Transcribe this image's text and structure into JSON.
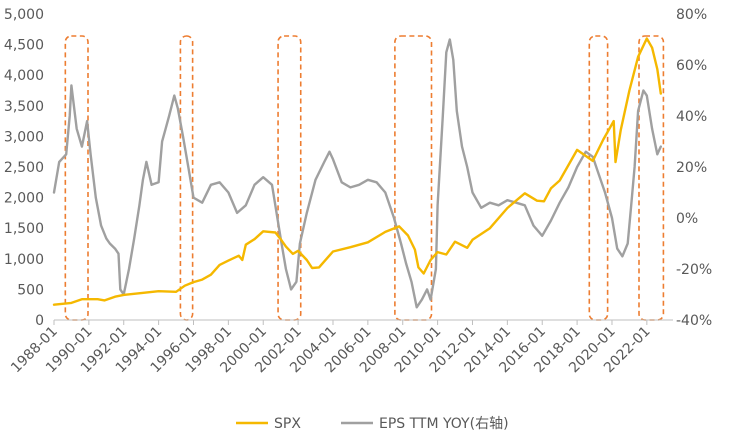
{
  "chart_data": {
    "type": "line",
    "title": "",
    "xlabel": "",
    "ylabel": "",
    "x_tick_labels": [
      "1988-01",
      "1990-01",
      "1992-01",
      "1994-01",
      "1996-01",
      "1998-01",
      "2000-01",
      "2002-01",
      "2004-01",
      "2006-01",
      "2008-01",
      "2010-01",
      "2012-01",
      "2014-01",
      "2016-01",
      "2018-01",
      "2020-01",
      "2022-01"
    ],
    "x_range": [
      1988.0,
      2023.5
    ],
    "left_axis": {
      "ylim": [
        0,
        5000
      ],
      "tick_labels": [
        "0",
        "500",
        "1,000",
        "1,500",
        "2,000",
        "2,500",
        "3,000",
        "3,500",
        "4,000",
        "4,500",
        "5,000"
      ]
    },
    "right_axis": {
      "ylim": [
        -40,
        80
      ],
      "tick_labels": [
        "-40%",
        "-20%",
        "0%",
        "20%",
        "40%",
        "60%",
        "80%"
      ]
    },
    "legend_position": "bottom",
    "series": [
      {
        "name": "SPX",
        "axis": "left",
        "color": "#F5B800",
        "points": [
          [
            1988.0,
            250
          ],
          [
            1989.0,
            280
          ],
          [
            1989.6,
            340
          ],
          [
            1990.5,
            340
          ],
          [
            1990.9,
            320
          ],
          [
            1991.5,
            380
          ],
          [
            1992.0,
            410
          ],
          [
            1993.0,
            440
          ],
          [
            1994.0,
            470
          ],
          [
            1995.0,
            460
          ],
          [
            1995.5,
            560
          ],
          [
            1996.0,
            620
          ],
          [
            1996.5,
            660
          ],
          [
            1997.0,
            740
          ],
          [
            1997.5,
            900
          ],
          [
            1998.0,
            970
          ],
          [
            1998.6,
            1050
          ],
          [
            1998.8,
            980
          ],
          [
            1999.0,
            1230
          ],
          [
            1999.5,
            1320
          ],
          [
            2000.0,
            1450
          ],
          [
            2000.7,
            1430
          ],
          [
            2001.0,
            1320
          ],
          [
            2001.3,
            1200
          ],
          [
            2001.7,
            1080
          ],
          [
            2002.0,
            1130
          ],
          [
            2002.5,
            980
          ],
          [
            2002.8,
            850
          ],
          [
            2003.2,
            860
          ],
          [
            2003.6,
            990
          ],
          [
            2004.0,
            1120
          ],
          [
            2005.0,
            1190
          ],
          [
            2006.0,
            1270
          ],
          [
            2007.0,
            1440
          ],
          [
            2007.8,
            1530
          ],
          [
            2008.3,
            1380
          ],
          [
            2008.7,
            1150
          ],
          [
            2008.9,
            860
          ],
          [
            2009.2,
            760
          ],
          [
            2009.6,
            980
          ],
          [
            2010.0,
            1110
          ],
          [
            2010.5,
            1070
          ],
          [
            2011.0,
            1280
          ],
          [
            2011.7,
            1180
          ],
          [
            2012.0,
            1310
          ],
          [
            2013.0,
            1500
          ],
          [
            2014.0,
            1830
          ],
          [
            2015.0,
            2070
          ],
          [
            2015.7,
            1950
          ],
          [
            2016.1,
            1940
          ],
          [
            2016.5,
            2150
          ],
          [
            2017.0,
            2280
          ],
          [
            2018.0,
            2780
          ],
          [
            2018.9,
            2600
          ],
          [
            2019.5,
            2950
          ],
          [
            2020.1,
            3250
          ],
          [
            2020.2,
            2580
          ],
          [
            2020.5,
            3100
          ],
          [
            2021.0,
            3750
          ],
          [
            2021.5,
            4300
          ],
          [
            2022.0,
            4600
          ],
          [
            2022.3,
            4450
          ],
          [
            2022.6,
            4100
          ],
          [
            2022.8,
            3700
          ]
        ]
      },
      {
        "name": "EPS TTM YOY(右轴)",
        "axis": "right",
        "color": "#A0A0A0",
        "points": [
          [
            1988.0,
            10
          ],
          [
            1988.3,
            22
          ],
          [
            1988.7,
            25
          ],
          [
            1988.9,
            40
          ],
          [
            1989.0,
            52
          ],
          [
            1989.3,
            35
          ],
          [
            1989.6,
            28
          ],
          [
            1989.9,
            38
          ],
          [
            1990.1,
            25
          ],
          [
            1990.4,
            8
          ],
          [
            1990.7,
            -3
          ],
          [
            1991.0,
            -8
          ],
          [
            1991.2,
            -10
          ],
          [
            1991.5,
            -12
          ],
          [
            1991.7,
            -14
          ],
          [
            1991.8,
            -28
          ],
          [
            1992.0,
            -30
          ],
          [
            1992.3,
            -20
          ],
          [
            1992.6,
            -8
          ],
          [
            1992.9,
            5
          ],
          [
            1993.1,
            15
          ],
          [
            1993.3,
            22
          ],
          [
            1993.6,
            13
          ],
          [
            1994.0,
            14
          ],
          [
            1994.2,
            30
          ],
          [
            1994.4,
            35
          ],
          [
            1994.6,
            40
          ],
          [
            1994.9,
            48
          ],
          [
            1995.1,
            43
          ],
          [
            1995.4,
            32
          ],
          [
            1995.7,
            20
          ],
          [
            1996.0,
            8
          ],
          [
            1996.5,
            6
          ],
          [
            1997.0,
            13
          ],
          [
            1997.5,
            14
          ],
          [
            1998.0,
            10
          ],
          [
            1998.5,
            2
          ],
          [
            1999.0,
            5
          ],
          [
            1999.5,
            13
          ],
          [
            2000.0,
            16
          ],
          [
            2000.5,
            13
          ],
          [
            2001.0,
            -8
          ],
          [
            2001.3,
            -20
          ],
          [
            2001.6,
            -28
          ],
          [
            2001.9,
            -25
          ],
          [
            2002.1,
            -10
          ],
          [
            2002.5,
            2
          ],
          [
            2003.0,
            15
          ],
          [
            2003.5,
            22
          ],
          [
            2003.8,
            26
          ],
          [
            2004.0,
            23
          ],
          [
            2004.5,
            14
          ],
          [
            2005.0,
            12
          ],
          [
            2005.5,
            13
          ],
          [
            2006.0,
            15
          ],
          [
            2006.5,
            14
          ],
          [
            2007.0,
            10
          ],
          [
            2007.5,
            0
          ],
          [
            2007.9,
            -10
          ],
          [
            2008.2,
            -18
          ],
          [
            2008.5,
            -25
          ],
          [
            2008.8,
            -35
          ],
          [
            2009.1,
            -32
          ],
          [
            2009.4,
            -28
          ],
          [
            2009.6,
            -32
          ],
          [
            2009.9,
            -20
          ],
          [
            2010.0,
            5
          ],
          [
            2010.3,
            40
          ],
          [
            2010.5,
            65
          ],
          [
            2010.7,
            70
          ],
          [
            2010.9,
            62
          ],
          [
            2011.1,
            42
          ],
          [
            2011.4,
            28
          ],
          [
            2011.7,
            20
          ],
          [
            2012.0,
            10
          ],
          [
            2012.5,
            4
          ],
          [
            2013.0,
            6
          ],
          [
            2013.5,
            5
          ],
          [
            2014.0,
            7
          ],
          [
            2014.5,
            6
          ],
          [
            2015.0,
            5
          ],
          [
            2015.5,
            -3
          ],
          [
            2016.0,
            -7
          ],
          [
            2016.5,
            -1
          ],
          [
            2017.0,
            6
          ],
          [
            2017.5,
            12
          ],
          [
            2018.0,
            20
          ],
          [
            2018.5,
            26
          ],
          [
            2018.9,
            24
          ],
          [
            2019.2,
            18
          ],
          [
            2019.6,
            10
          ],
          [
            2020.0,
            0
          ],
          [
            2020.3,
            -12
          ],
          [
            2020.6,
            -15
          ],
          [
            2020.9,
            -10
          ],
          [
            2021.1,
            5
          ],
          [
            2021.3,
            20
          ],
          [
            2021.5,
            42
          ],
          [
            2021.8,
            50
          ],
          [
            2022.0,
            48
          ],
          [
            2022.3,
            35
          ],
          [
            2022.6,
            25
          ],
          [
            2022.8,
            28
          ]
        ]
      }
    ],
    "highlight_periods": [
      [
        1988.65,
        1989.95
      ],
      [
        1995.25,
        1995.95
      ],
      [
        2000.85,
        2002.15
      ],
      [
        2007.55,
        2009.65
      ],
      [
        2018.7,
        2019.75
      ],
      [
        2021.55,
        2022.95
      ]
    ]
  }
}
